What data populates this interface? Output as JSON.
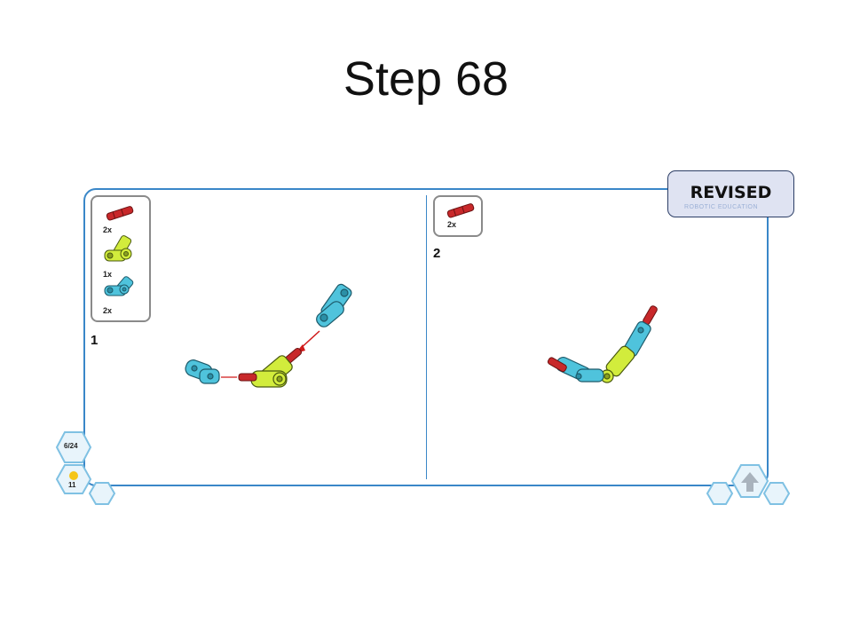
{
  "slide": {
    "title": "Step 68"
  },
  "badge": {
    "label": "REVISED",
    "sub": "ROBOTIC EDUCATION"
  },
  "substep1": {
    "number": "1",
    "parts": [
      {
        "qty": "2x",
        "icon": "red-axle-pin-icon"
      },
      {
        "qty": "1x",
        "icon": "lime-angle-connector-icon"
      },
      {
        "qty": "2x",
        "icon": "blue-angle-connector-icon"
      }
    ]
  },
  "substep2": {
    "number": "2",
    "parts": [
      {
        "qty": "2x",
        "icon": "red-axle-pin-icon"
      }
    ]
  },
  "nav": {
    "page": "6/24",
    "counter": "11"
  },
  "colors": {
    "frame": "#3a87c8",
    "red_part": "#c8282a",
    "lime_part": "#d2ec3c",
    "blue_part": "#4fc3dc"
  }
}
